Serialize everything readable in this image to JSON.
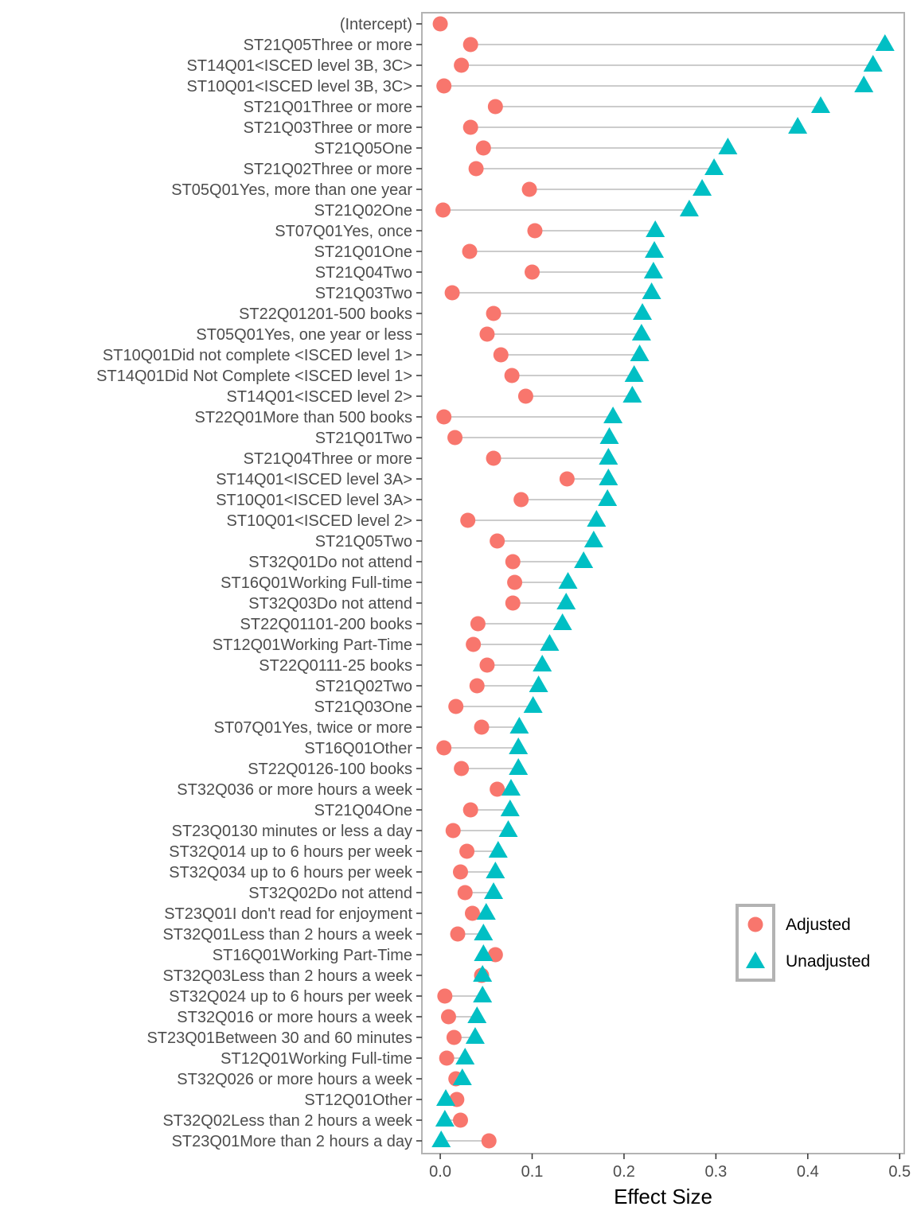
{
  "chart_data": {
    "type": "scatter",
    "subtype": "dumbbell",
    "title": "",
    "xlabel": "Effect Size",
    "ylabel": "",
    "xlim": [
      -0.02,
      0.505
    ],
    "xticks": [
      0.0,
      0.1,
      0.2,
      0.3,
      0.4,
      0.5
    ],
    "xtick_labels": [
      "0.0",
      "0.1",
      "0.2",
      "0.3",
      "0.4",
      "0.5"
    ],
    "grid": false,
    "legend_position": "right",
    "series": [
      {
        "name": "Adjusted",
        "marker": "circle",
        "color": "#F8766D"
      },
      {
        "name": "Unadjusted",
        "marker": "triangle",
        "color": "#00BFC4"
      }
    ],
    "segment_color": "#CCCCCC",
    "categories": [
      "(Intercept)",
      "ST21Q05Three or more",
      "ST14Q01<ISCED level 3B, 3C>",
      "ST10Q01<ISCED level 3B, 3C>",
      "ST21Q01Three or more",
      "ST21Q03Three or more",
      "ST21Q05One",
      "ST21Q02Three or more",
      "ST05Q01Yes, more than one year",
      "ST21Q02One",
      "ST07Q01Yes, once",
      "ST21Q01One",
      "ST21Q04Two",
      "ST21Q03Two",
      "ST22Q01201-500 books",
      "ST05Q01Yes, one year or less",
      "ST10Q01Did not complete <ISCED level 1>",
      "ST14Q01Did Not Complete <ISCED level 1>",
      "ST14Q01<ISCED level 2>",
      "ST22Q01More than 500 books",
      "ST21Q01Two",
      "ST21Q04Three or more",
      "ST14Q01<ISCED level 3A>",
      "ST10Q01<ISCED level 3A>",
      "ST10Q01<ISCED level 2>",
      "ST21Q05Two",
      "ST32Q01Do not attend",
      "ST16Q01Working Full-time",
      "ST32Q03Do not attend",
      "ST22Q01101-200 books",
      "ST12Q01Working Part-Time",
      "ST22Q0111-25 books",
      "ST21Q02Two",
      "ST21Q03One",
      "ST07Q01Yes, twice or more",
      "ST16Q01Other",
      "ST22Q0126-100 books",
      "ST32Q036 or more hours a week",
      "ST21Q04One",
      "ST23Q0130 minutes or less a day",
      "ST32Q014 up to 6 hours per week",
      "ST32Q034 up to 6 hours per week",
      "ST32Q02Do not attend",
      "ST23Q01I don't read for enjoyment",
      "ST32Q01Less than 2 hours a week",
      "ST16Q01Working Part-Time",
      "ST32Q03Less than 2 hours a week",
      "ST32Q024 up to 6 hours per week",
      "ST32Q016 or more hours a week",
      "ST23Q01Between 30 and 60 minutes",
      "ST12Q01Working Full-time",
      "ST32Q026 or more hours a week",
      "ST12Q01Other",
      "ST32Q02Less than 2 hours a week",
      "ST23Q01More than 2 hours a day"
    ],
    "adjusted": [
      0.0,
      0.033,
      0.023,
      0.004,
      0.06,
      0.033,
      0.047,
      0.039,
      0.097,
      0.003,
      0.103,
      0.032,
      0.1,
      0.013,
      0.058,
      0.051,
      0.066,
      0.078,
      0.093,
      0.004,
      0.016,
      0.058,
      0.138,
      0.088,
      0.03,
      0.062,
      0.079,
      0.081,
      0.079,
      0.041,
      0.036,
      0.051,
      0.04,
      0.017,
      0.045,
      0.004,
      0.023,
      0.062,
      0.033,
      0.014,
      0.029,
      0.022,
      0.027,
      0.035,
      0.019,
      0.06,
      0.045,
      0.005,
      0.009,
      0.015,
      0.007,
      0.017,
      0.018,
      0.022,
      0.053
    ],
    "unadjusted": [
      null,
      0.484,
      0.471,
      0.461,
      0.414,
      0.389,
      0.313,
      0.298,
      0.285,
      0.271,
      0.234,
      0.233,
      0.232,
      0.23,
      0.22,
      0.219,
      0.217,
      0.211,
      0.209,
      0.188,
      0.184,
      0.183,
      0.183,
      0.182,
      0.17,
      0.167,
      0.156,
      0.139,
      0.137,
      0.133,
      0.119,
      0.111,
      0.107,
      0.101,
      0.086,
      0.085,
      0.085,
      0.077,
      0.076,
      0.074,
      0.063,
      0.06,
      0.058,
      0.05,
      0.047,
      0.047,
      0.046,
      0.046,
      0.04,
      0.038,
      0.027,
      0.024,
      0.006,
      0.005,
      0.001
    ]
  }
}
